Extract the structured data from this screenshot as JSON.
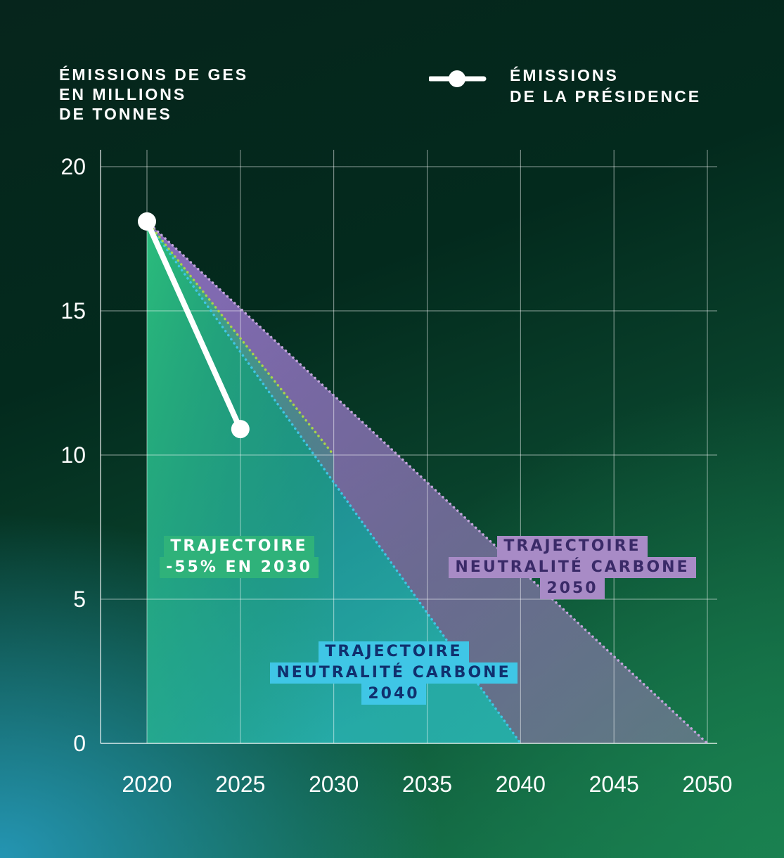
{
  "header": {
    "ylabel_lines": [
      "ÉMISSIONS DE GES",
      "EN MILLIONS",
      "DE TONNES"
    ],
    "legend_lines": [
      "ÉMISSIONS",
      "DE LA PRÉSIDENCE"
    ]
  },
  "chart_data": {
    "type": "line",
    "ylim": [
      0,
      20
    ],
    "xlim": [
      2020,
      2050
    ],
    "yticks": [
      0,
      5,
      10,
      15,
      20
    ],
    "xticks": [
      2020,
      2025,
      2030,
      2035,
      2040,
      2045,
      2050
    ],
    "grid": true,
    "legend_position": "top-right",
    "series": [
      {
        "name": "ÉMISSIONS DE LA PRÉSIDENCE",
        "style": "solid",
        "color": "#ffffff",
        "x": [
          2020,
          2025
        ],
        "y": [
          18.1,
          10.9
        ]
      },
      {
        "style": "dotted",
        "color": "#a8d44a",
        "x": [
          2020,
          2030
        ],
        "y": [
          18.1,
          10
        ]
      },
      {
        "style": "dotted",
        "color": "#3fc6e6",
        "x": [
          2020,
          2040
        ],
        "y": [
          18.1,
          0
        ]
      },
      {
        "style": "dotted",
        "color": "#c4a6dc",
        "x": [
          2020,
          2050
        ],
        "y": [
          18.1,
          0
        ]
      }
    ],
    "annotations": {
      "green": [
        "TRAJECTOIRE",
        "-55% EN 2030"
      ],
      "purple": [
        "TRAJECTOIRE",
        "NEUTRALITÉ CARBONE",
        "2050"
      ],
      "blue": [
        "TRAJECTOIRE",
        "NEUTRALITÉ CARBONE",
        "2040"
      ]
    }
  }
}
